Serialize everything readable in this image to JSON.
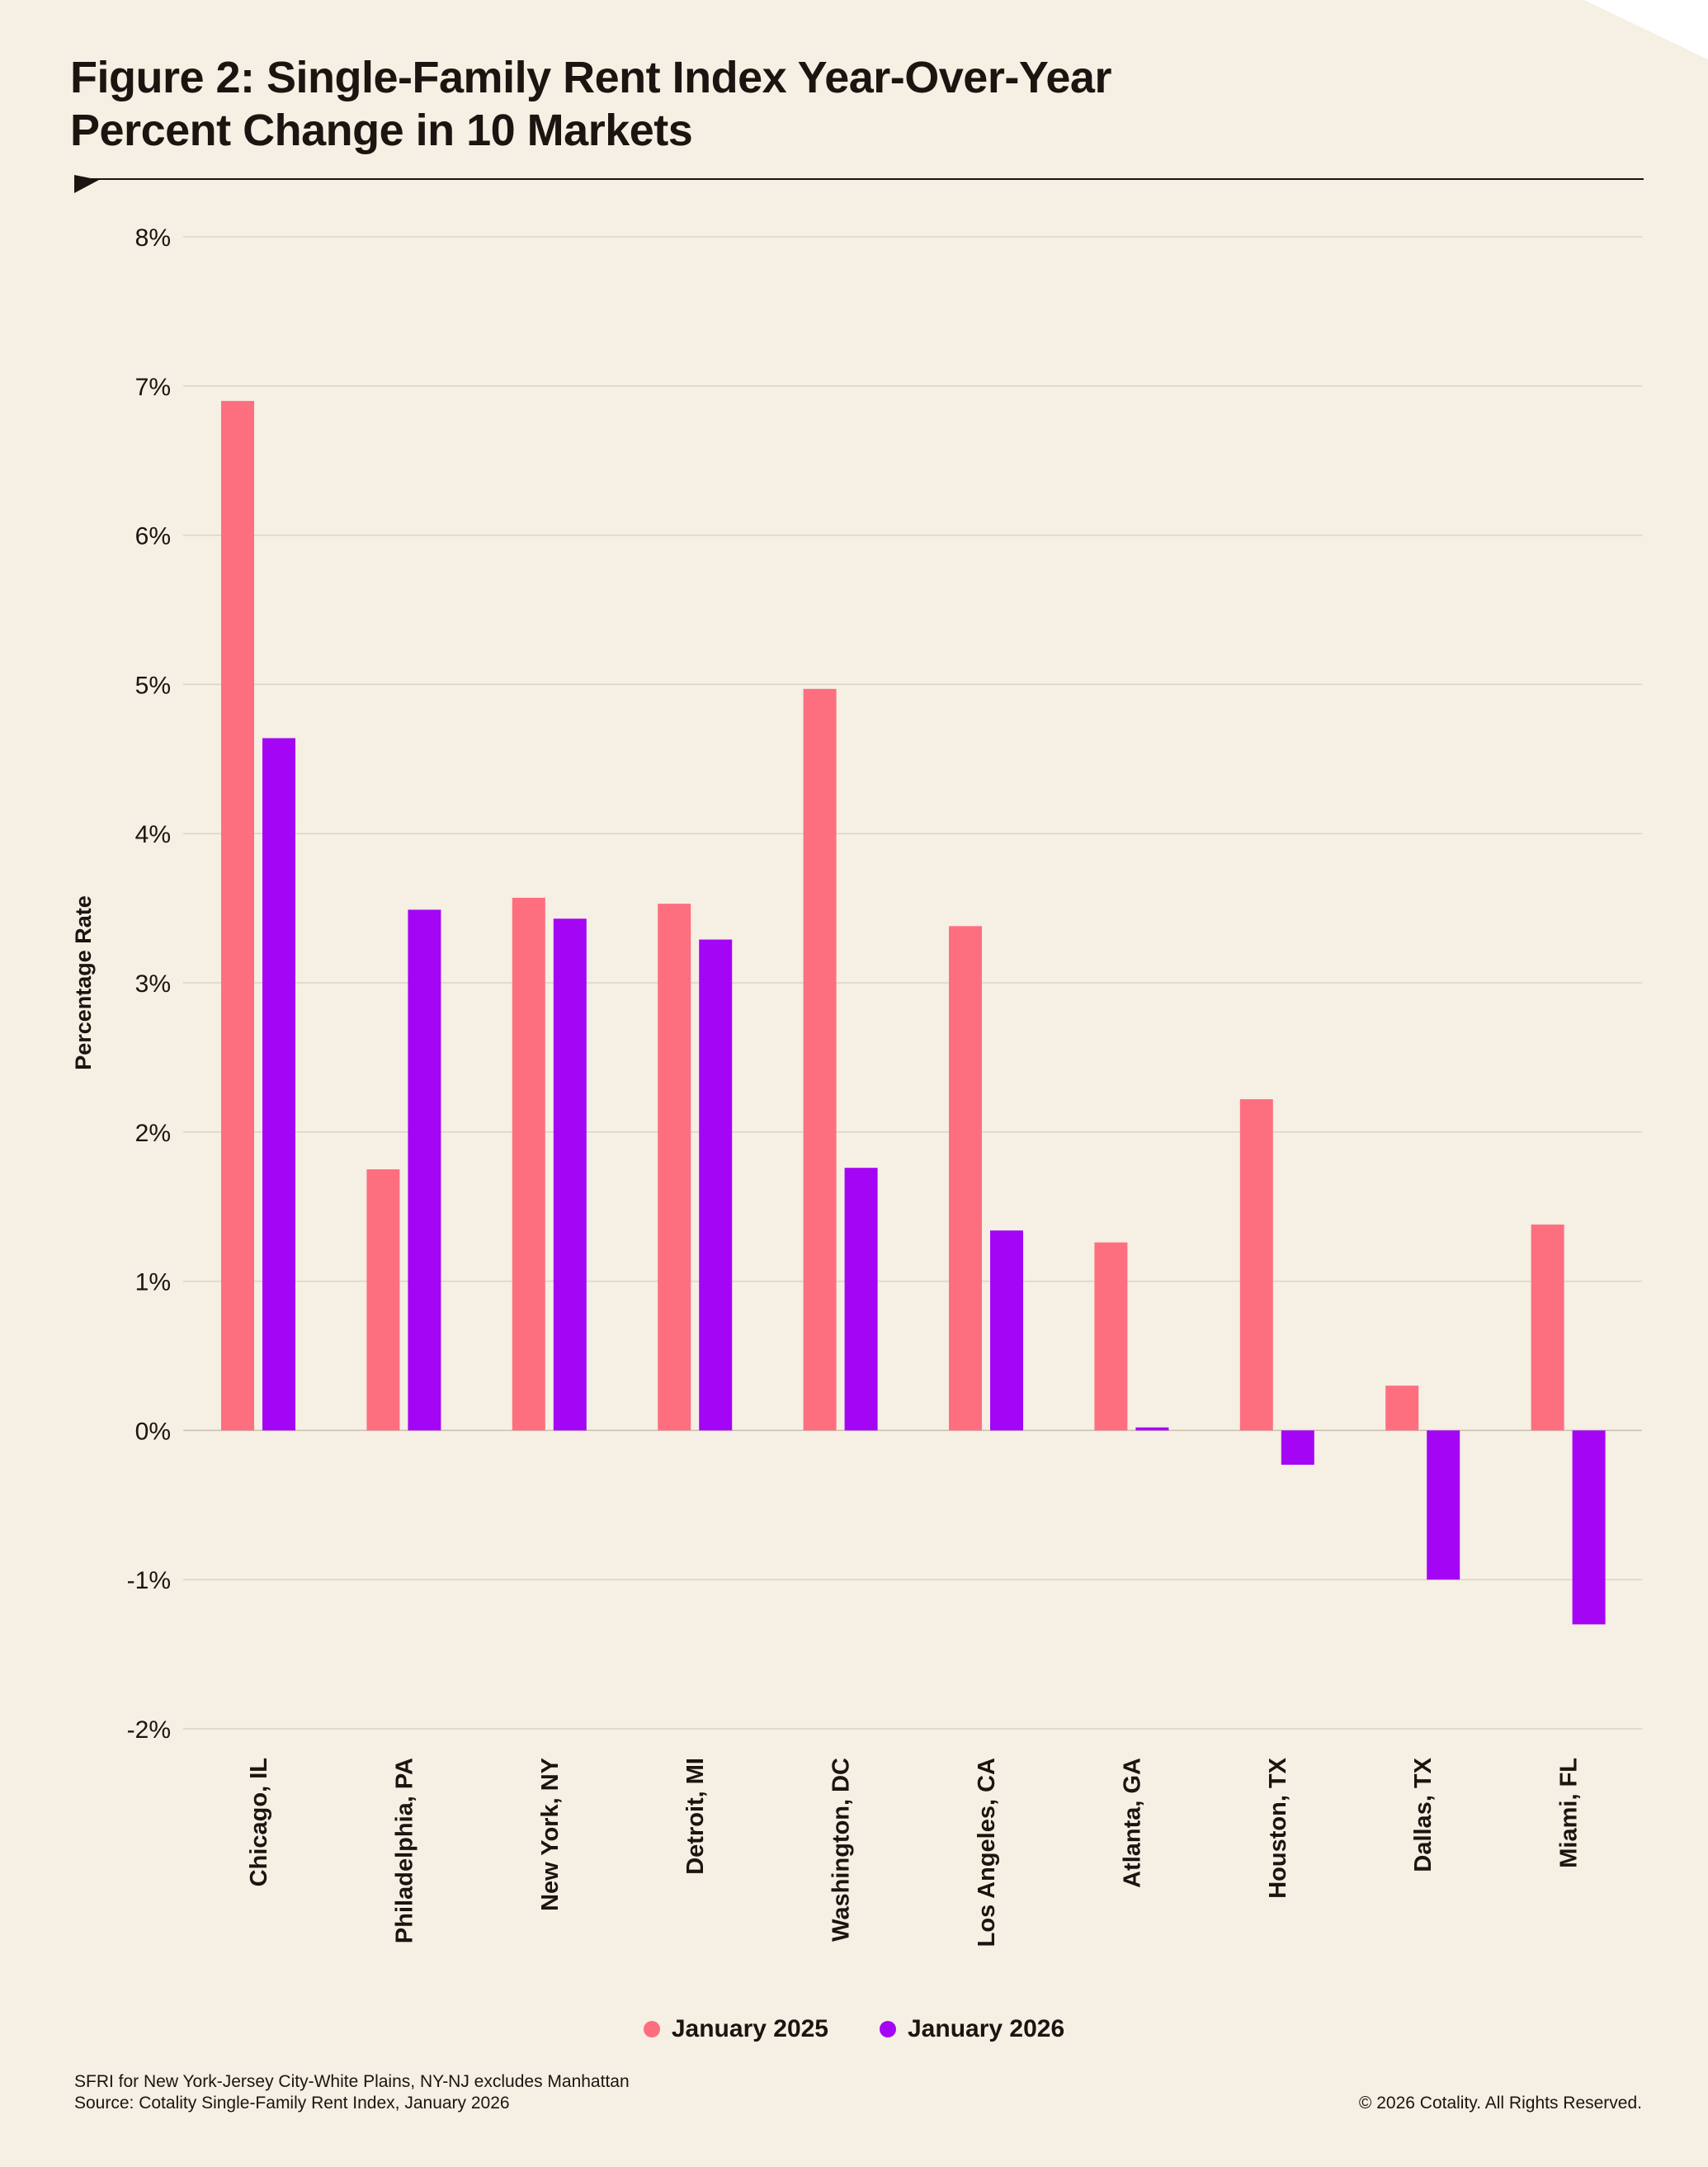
{
  "header": {
    "title_line1": "Figure 2: Single-Family Rent Index Year-Over-Year",
    "title_line2": "Percent Change in 10 Markets"
  },
  "chart_data": {
    "type": "bar",
    "title": "Figure 2: Single-Family Rent Index Year-Over-Year Percent Change in 10 Markets",
    "xlabel": "",
    "ylabel": "Percentage Rate",
    "ylim": [
      -2,
      8
    ],
    "yticks": [
      8,
      7,
      6,
      5,
      4,
      3,
      2,
      1,
      0,
      -1,
      -2
    ],
    "ytick_labels": [
      "8%",
      "7%",
      "6%",
      "5%",
      "4%",
      "3%",
      "2%",
      "1%",
      "0%",
      "-1%",
      "-2%"
    ],
    "grid": true,
    "categories": [
      "Chicago, IL",
      "Philadelphia, PA",
      "New York, NY",
      "Detroit, MI",
      "Washington, DC",
      "Los Angeles, CA",
      "Atlanta, GA",
      "Houston, TX",
      "Dallas, TX",
      "Miami, FL"
    ],
    "series": [
      {
        "name": "January 2025",
        "color": "#fd6f7f",
        "values": [
          6.9,
          1.75,
          3.57,
          3.53,
          4.97,
          3.38,
          1.26,
          2.22,
          0.3,
          1.38
        ]
      },
      {
        "name": "January 2026",
        "color": "#a406f5",
        "values": [
          4.64,
          3.49,
          3.43,
          3.29,
          1.76,
          1.34,
          0.02,
          -0.23,
          -1.0,
          -1.3
        ]
      }
    ],
    "legend_position": "bottom-center"
  },
  "footer": {
    "note": "SFRI for New York-Jersey City-White Plains, NY-NJ excludes Manhattan",
    "source": "Source: Cotality Single-Family Rent Index, January 2026",
    "copyright": "© 2026 Cotality. All Rights Reserved."
  },
  "colors": {
    "background": "#f6efe3",
    "text": "#1c1410",
    "grid": "#dcd3c6"
  }
}
